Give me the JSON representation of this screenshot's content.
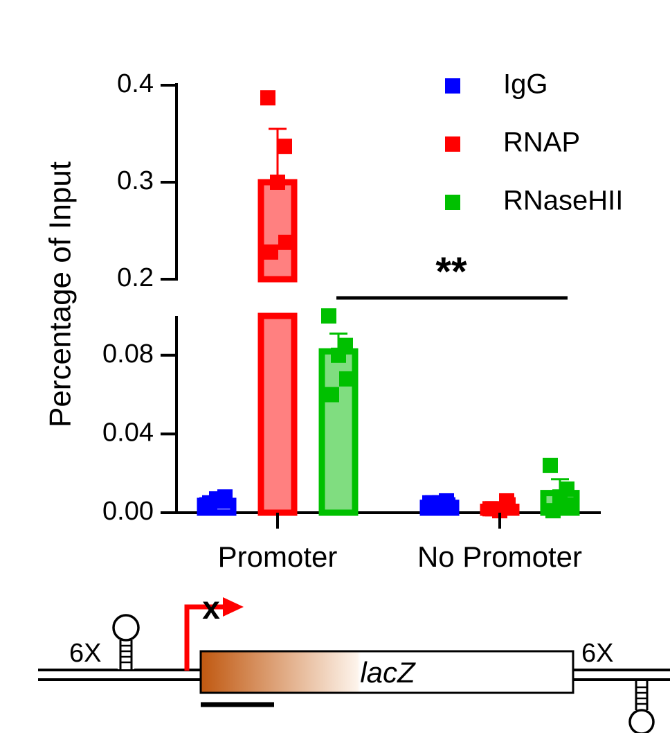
{
  "chart_data": {
    "type": "bar",
    "ylabel": "Percentage of Input",
    "categories": [
      "Promoter",
      "No Promoter"
    ],
    "y_axis_break": [
      0.1,
      0.2
    ],
    "y_ticks_lower": [
      "0.00",
      "0.04",
      "0.08"
    ],
    "y_ticks_upper": [
      "0.2",
      "0.3",
      "0.4"
    ],
    "ylim": [
      0,
      0.4
    ],
    "legend_position": "top-right",
    "series": [
      {
        "name": "IgG",
        "color": "#0000ff",
        "fill": "#8080ff",
        "values": [
          0.006,
          0.005
        ],
        "errors": [
          0.001,
          0.0005
        ],
        "points": [
          [
            0.004,
            0.006,
            0.007,
            0.008,
            0.005
          ],
          [
            0.005,
            0.006,
            0.005,
            0.004,
            0.005
          ]
        ]
      },
      {
        "name": "RNAP",
        "color": "#ff0000",
        "fill": "#ff8080",
        "values": [
          0.3,
          0.003
        ],
        "errors": [
          0.055,
          0.001
        ],
        "points": [
          [
            0.387,
            0.337,
            0.3,
            0.238,
            0.228
          ],
          [
            0.002,
            0.006,
            0.001,
            0.004,
            0.002
          ]
        ]
      },
      {
        "name": "RNaseHII",
        "color": "#00c000",
        "fill": "#80dd80",
        "values": [
          0.082,
          0.01
        ],
        "errors": [
          0.009,
          0.007
        ],
        "points": [
          [
            0.1,
            0.085,
            0.08,
            0.068,
            0.06
          ],
          [
            0.024,
            0.012,
            0.008,
            0.004,
            0.001
          ]
        ]
      }
    ],
    "annotations": [
      {
        "text": "**",
        "between": [
          "Promoter",
          "No Promoter"
        ]
      }
    ]
  },
  "diagram": {
    "left_repeat": "6X",
    "right_repeat": "6X",
    "gene": "lacZ",
    "promoter_mark": "x"
  }
}
